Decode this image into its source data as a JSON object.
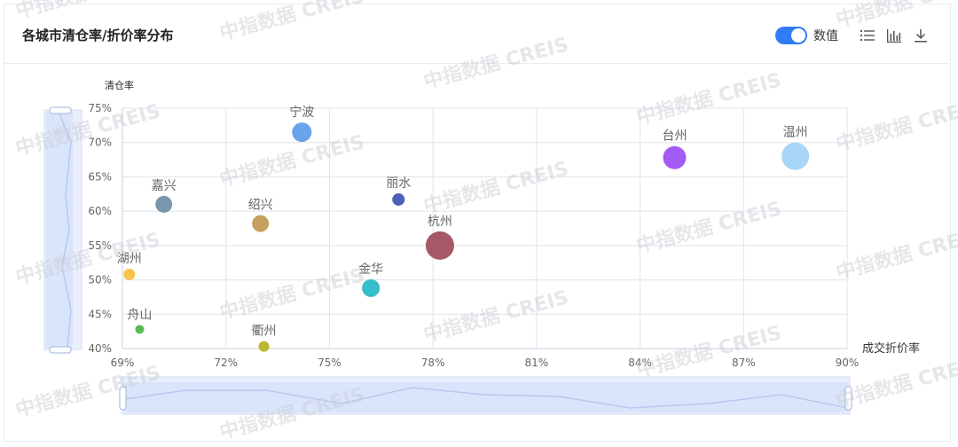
{
  "header": {
    "title": "各城市清仓率/折价率分布",
    "toggle_label": "数值",
    "toggle_on": true,
    "icons": [
      "list-icon",
      "bar-chart-icon",
      "download-icon"
    ]
  },
  "watermark_text": "中指数据 CREIS",
  "colors": {
    "accent": "#2f7cf6",
    "axis_text": "#666666",
    "grid": "#dfe3ee",
    "slider_fill": "#d6e2fb"
  },
  "chart_data": {
    "type": "scatter",
    "title": "",
    "xlabel": "成交折价率",
    "ylabel": "清仓率",
    "xlim": [
      69,
      90
    ],
    "ylim": [
      40,
      75
    ],
    "x_ticks": [
      "69%",
      "72%",
      "75%",
      "78%",
      "81%",
      "84%",
      "87%",
      "90%"
    ],
    "y_ticks": [
      "40%",
      "45%",
      "50%",
      "55%",
      "60%",
      "65%",
      "70%",
      "75%"
    ],
    "points": [
      {
        "name": "宁波",
        "x": 74.2,
        "y": 71.5,
        "size": 11,
        "color": "#5b9bea"
      },
      {
        "name": "嘉兴",
        "x": 70.2,
        "y": 61.0,
        "size": 9.5,
        "color": "#6b8fa3"
      },
      {
        "name": "绍兴",
        "x": 73.0,
        "y": 58.2,
        "size": 9.5,
        "color": "#c09850"
      },
      {
        "name": "丽水",
        "x": 77.0,
        "y": 61.7,
        "size": 7,
        "color": "#3f51b5"
      },
      {
        "name": "杭州",
        "x": 78.2,
        "y": 55.0,
        "size": 16,
        "color": "#9e4a5c"
      },
      {
        "name": "湖州",
        "x": 69.2,
        "y": 50.8,
        "size": 6.5,
        "color": "#f5bf3c"
      },
      {
        "name": "金华",
        "x": 76.2,
        "y": 48.8,
        "size": 10,
        "color": "#26b8c6"
      },
      {
        "name": "舟山",
        "x": 69.5,
        "y": 42.8,
        "size": 5,
        "color": "#4cb648"
      },
      {
        "name": "衢州",
        "x": 73.1,
        "y": 40.3,
        "size": 6,
        "color": "#b5b31e"
      },
      {
        "name": "台州",
        "x": 85.0,
        "y": 67.8,
        "size": 13,
        "color": "#9b4df5"
      },
      {
        "name": "温州",
        "x": 88.5,
        "y": 68.0,
        "size": 15.5,
        "color": "#9fd3f5"
      }
    ],
    "grid": true,
    "legend": "none"
  }
}
